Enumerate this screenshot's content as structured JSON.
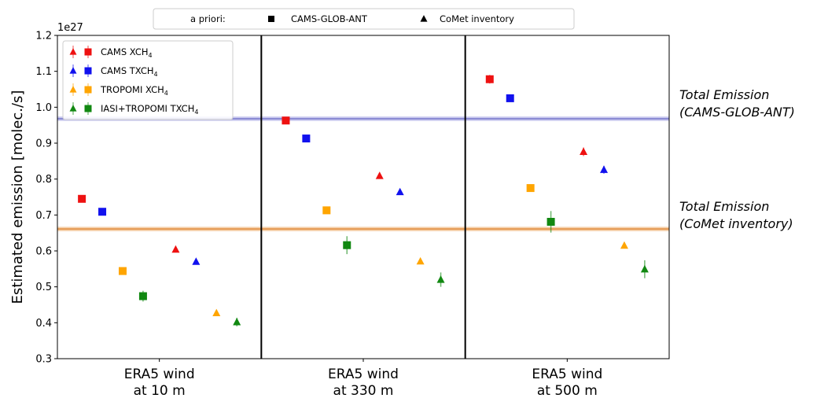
{
  "top_legend": {
    "title": "a priori:",
    "items": [
      {
        "label": "CAMS-GLOB-ANT",
        "marker": "square"
      },
      {
        "label": "CoMet inventory",
        "marker": "triangle"
      }
    ]
  },
  "chart_data": {
    "type": "scatter",
    "title": "",
    "ylabel": "Estimated emission [molec./s]",
    "y_offset_label": "1e27",
    "ylim": [
      0.3,
      1.2
    ],
    "yticks": [
      0.3,
      0.4,
      0.5,
      0.6,
      0.7,
      0.8,
      0.9,
      1.0,
      1.1,
      1.2
    ],
    "ytick_labels": [
      "0.3",
      "0.4",
      "0.5",
      "0.6",
      "0.7",
      "0.8",
      "0.9",
      "1.0",
      "1.1",
      "1.2"
    ],
    "grid": false,
    "legend_position": "top-left",
    "panels": [
      {
        "line1": "ERA5 wind",
        "line2": "at 10 m"
      },
      {
        "line1": "ERA5 wind",
        "line2": "at 330 m"
      },
      {
        "line1": "ERA5 wind",
        "line2": "at 500 m"
      }
    ],
    "series": [
      {
        "name": "CAMS XCH",
        "sub": "4",
        "color": "#ee1111",
        "square": [
          [
            0.745,
            0.008
          ],
          [
            0.963,
            0.009
          ],
          [
            1.078,
            0.012
          ]
        ],
        "triangle": [
          [
            0.604,
            0.006
          ],
          [
            0.809,
            0.008
          ],
          [
            0.876,
            0.012
          ]
        ]
      },
      {
        "name": "CAMS TXCH",
        "sub": "4",
        "color": "#1111ee",
        "square": [
          [
            0.709,
            0.005
          ],
          [
            0.913,
            0.006
          ],
          [
            1.025,
            0.008
          ]
        ],
        "triangle": [
          [
            0.57,
            0.005
          ],
          [
            0.764,
            0.006
          ],
          [
            0.826,
            0.011
          ]
        ]
      },
      {
        "name": "TROPOMI XCH",
        "sub": "4",
        "color": "#ffa500",
        "square": [
          [
            0.544,
            0.004
          ],
          [
            0.713,
            0.005
          ],
          [
            0.775,
            0.005
          ]
        ],
        "triangle": [
          [
            0.427,
            0.004
          ],
          [
            0.571,
            0.004
          ],
          [
            0.615,
            0.004
          ]
        ]
      },
      {
        "name": "IASI+TROPOMI TXCH",
        "sub": "4",
        "color": "#118811",
        "square": [
          [
            0.474,
            0.015
          ],
          [
            0.616,
            0.025
          ],
          [
            0.681,
            0.03
          ]
        ],
        "triangle": [
          [
            0.402,
            0.012
          ],
          [
            0.52,
            0.02
          ],
          [
            0.549,
            0.025
          ]
        ]
      }
    ],
    "reference_lines": [
      {
        "value": 0.968,
        "band": 0.006,
        "color": "#7777cc",
        "band_color": "#c8c8ee",
        "label1": "Total Emission",
        "label2": "(CAMS-GLOB-ANT)"
      },
      {
        "value": 0.661,
        "band": 0.006,
        "color": "#e08a3a",
        "band_color": "#f5cfa8",
        "label1": "Total Emission",
        "label2": "(CoMet inventory)"
      }
    ]
  }
}
